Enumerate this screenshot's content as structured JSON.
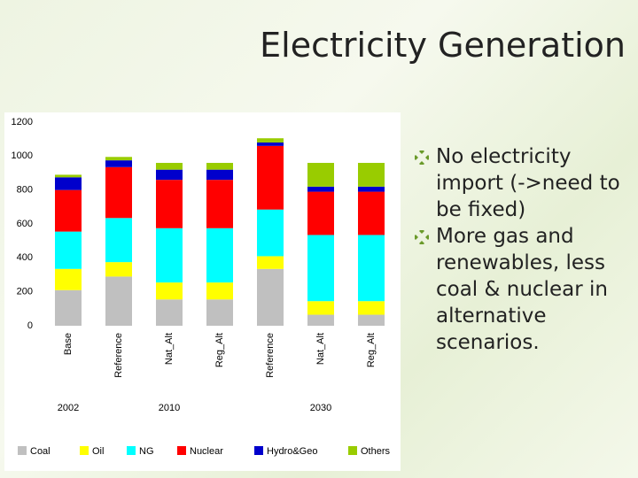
{
  "title": "Electricity Generation",
  "bullets": [
    "No electricity import (->need to be fixed)",
    "More gas and renewables, less coal & nuclear in alternative scenarios."
  ],
  "chart_data": {
    "type": "bar",
    "stacked": true,
    "categories": [
      "Base",
      "Reference",
      "Nat_Alt",
      "Reg_Alt",
      "Reference",
      "Nat_Alt",
      "Reg_Alt"
    ],
    "category_groups": [
      "2002",
      "2010",
      "2030"
    ],
    "group_sizes": [
      1,
      3,
      3
    ],
    "series": [
      {
        "name": "Coal",
        "color": "#c0c0c0",
        "values": [
          210,
          290,
          155,
          155,
          335,
          65,
          65
        ]
      },
      {
        "name": "Oil",
        "color": "#ffff00",
        "values": [
          125,
          85,
          100,
          100,
          75,
          80,
          80
        ]
      },
      {
        "name": "NG",
        "color": "#00ffff",
        "values": [
          220,
          260,
          320,
          320,
          275,
          390,
          390
        ]
      },
      {
        "name": "Nuclear",
        "color": "#ff0000",
        "values": [
          245,
          300,
          285,
          285,
          375,
          255,
          255
        ]
      },
      {
        "name": "Hydro&Geo",
        "color": "#0000cc",
        "values": [
          75,
          40,
          60,
          60,
          20,
          30,
          30
        ]
      },
      {
        "name": "Others",
        "color": "#99cc00",
        "values": [
          15,
          20,
          40,
          40,
          25,
          140,
          140
        ]
      }
    ],
    "ylim": [
      0,
      1200
    ],
    "yticks": [
      0,
      200,
      400,
      600,
      800,
      1000,
      1200
    ],
    "grid": false
  }
}
